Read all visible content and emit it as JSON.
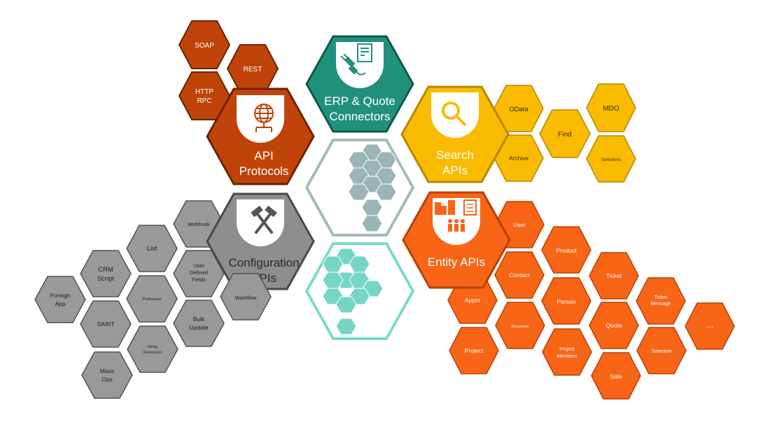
{
  "colors": {
    "protocols": "#c0440a",
    "protocols_stroke": "#6a2506",
    "erp": "#22917c",
    "erp_stroke": "#0f5b4c",
    "search": "#f9bb00",
    "search_stroke": "#b98700",
    "entity": "#f86516",
    "entity_stroke": "#b84104",
    "config": "#8e8e8e",
    "config_stroke": "#4a4a4a",
    "gray_fill": "#999999",
    "gray_stroke": "#545454",
    "teal_cell": "#9bb5b6",
    "teal_cell2": "#76d6c5",
    "white": "#ffffff"
  },
  "main": {
    "protocols": {
      "line1": "API",
      "line2": "Protocols",
      "icon": "globe-network-icon"
    },
    "erp": {
      "line1": "ERP & Quote",
      "line2": "Connectors",
      "icon": "plug-document-icon"
    },
    "search": {
      "line1": "Search",
      "line2": "APIs",
      "icon": "magnifier-icon"
    },
    "config": {
      "line1": "Configuration",
      "line2": "APIs",
      "icon": "hammer-tools-icon"
    },
    "entity": {
      "line1": "Entity APIs",
      "icon": "buildings-people-icon"
    }
  },
  "protocols": {
    "soap": "SOAP",
    "rest": "REST",
    "http": "HTTP",
    "rpc": "RPC"
  },
  "search": {
    "odata": "OData",
    "mdo": "MDO",
    "find": "Find",
    "archive": "Archive",
    "selections": "Selections"
  },
  "config": {
    "webhook": "Webhook",
    "list": "List",
    "udf1": "User",
    "udf2": "Defined",
    "udf3": "Fields",
    "crm1": "CRM",
    "crm2": "Script",
    "foreign1": "Foreign",
    "foreign2": "App",
    "preference": "Preference",
    "workflow": "Workflow",
    "bulk1": "Bulk",
    "bulk2": "Update",
    "saint": "SAINT",
    "string1": "String",
    "string2": "Resources",
    "mass1": "Mass",
    "mass2": "Ops"
  },
  "entity": {
    "user": "User",
    "product": "Product",
    "contact": "Contact",
    "ticket": "Ticket",
    "tm1": "Ticket",
    "tm2": "Message",
    "appnt": "Appnt",
    "person": "Person",
    "quote": "Quote",
    "more": "...",
    "document": "Document",
    "pm1": "Project",
    "pm2": "Members",
    "selection": "Selection",
    "project": "Project",
    "sale": "Sale"
  }
}
